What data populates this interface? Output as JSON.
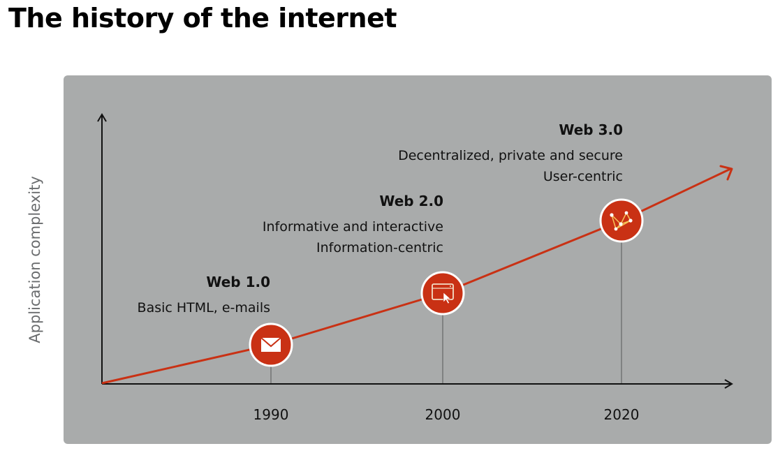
{
  "title": "The history of the internet",
  "colors": {
    "accent": "#c93114",
    "panel": "#a9abab"
  },
  "axes": {
    "y_label": "Application complexity"
  },
  "eras": [
    {
      "heading": "Web 1.0",
      "year": "1990",
      "icon": "envelope-icon",
      "lines": [
        "Basic HTML, e-mails"
      ]
    },
    {
      "heading": "Web 2.0",
      "year": "2000",
      "icon": "browser-cursor-icon",
      "lines": [
        "Informative and interactive",
        "Information-centric"
      ]
    },
    {
      "heading": "Web 3.0",
      "year": "2020",
      "icon": "network-nodes-icon",
      "lines": [
        "Decentralized, private and secure",
        "User-centric"
      ]
    }
  ]
}
